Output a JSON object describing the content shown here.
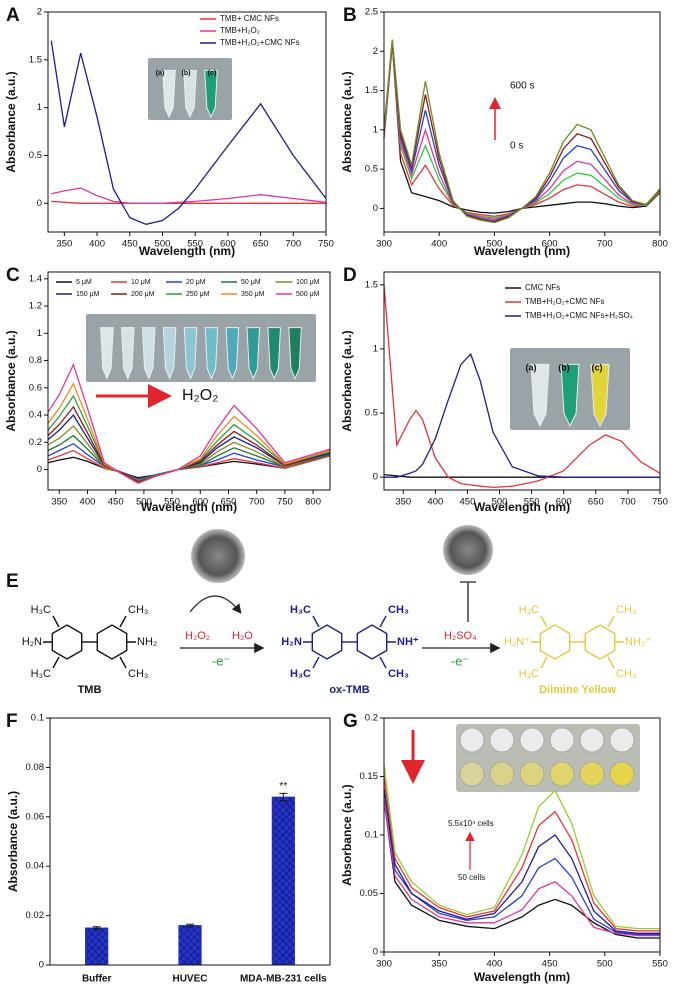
{
  "chart_data": [
    {
      "type": "line",
      "panel_label": "A",
      "x_label": "Wavelength (nm)",
      "y_label": "Absorbance (a.u.)",
      "x": [
        330,
        350,
        375,
        400,
        425,
        450,
        475,
        500,
        525,
        550,
        600,
        650,
        700,
        750
      ],
      "series": [
        {
          "name": "TMB+ CMC NFs",
          "color": "#e8343c",
          "values": [
            0.02,
            0.01,
            0,
            0,
            0,
            0,
            0,
            0,
            0,
            0,
            0,
            0,
            0,
            0
          ]
        },
        {
          "name": "TMB+H₂O₂",
          "color": "#e0379a",
          "values": [
            0.1,
            0.13,
            0.16,
            0.08,
            0.02,
            0,
            0,
            0,
            0.01,
            0.02,
            0.05,
            0.09,
            0.05,
            0.01
          ]
        },
        {
          "name": "TMB+H₂O₂+CMC NFs",
          "color": "#1d1e8c",
          "values": [
            1.7,
            0.8,
            1.57,
            0.9,
            0.15,
            -0.15,
            -0.22,
            -0.18,
            -0.05,
            0.15,
            0.6,
            1.04,
            0.5,
            0.05
          ]
        }
      ],
      "xlim": [
        325,
        750
      ],
      "xticks": [
        350,
        400,
        450,
        500,
        550,
        600,
        650,
        700,
        750
      ],
      "ylim": [
        -0.3,
        2
      ],
      "yticks": [
        0,
        0.5,
        1,
        1.5,
        2
      ],
      "legend": "upper right",
      "inset_labels": [
        "(a)",
        "(b)",
        "(c)"
      ]
    },
    {
      "type": "line",
      "panel_label": "B",
      "x_label": "Wavelength (nm)",
      "y_label": "Absorbance (a.u.)",
      "x": [
        300,
        315,
        330,
        350,
        375,
        400,
        425,
        450,
        475,
        500,
        525,
        550,
        575,
        600,
        625,
        650,
        675,
        700,
        725,
        750,
        775,
        800
      ],
      "series": [
        {
          "color": "#111111",
          "values": [
            0.9,
            2.1,
            0.6,
            0.2,
            0.15,
            0.1,
            0.02,
            -0.02,
            -0.05,
            -0.06,
            -0.04,
            0,
            0.02,
            0.04,
            0.06,
            0.08,
            0.08,
            0.06,
            0.03,
            0.01,
            0.03,
            0.2
          ]
        },
        {
          "color": "#e8343c",
          "values": [
            0.9,
            2.1,
            0.7,
            0.3,
            0.55,
            0.25,
            0.04,
            -0.05,
            -0.08,
            -0.1,
            -0.07,
            0,
            0.05,
            0.13,
            0.24,
            0.3,
            0.28,
            0.18,
            0.08,
            0.03,
            0.04,
            0.21
          ]
        },
        {
          "color": "#2ecc40",
          "values": [
            0.95,
            2.12,
            0.8,
            0.38,
            0.8,
            0.36,
            0.05,
            -0.06,
            -0.1,
            -0.12,
            -0.08,
            0,
            0.07,
            0.19,
            0.36,
            0.45,
            0.42,
            0.28,
            0.13,
            0.05,
            0.04,
            0.22
          ]
        },
        {
          "color": "#e0379a",
          "values": [
            0.95,
            2.12,
            0.85,
            0.43,
            1,
            0.44,
            0.06,
            -0.07,
            -0.11,
            -0.14,
            -0.09,
            0,
            0.09,
            0.25,
            0.48,
            0.6,
            0.56,
            0.37,
            0.17,
            0.06,
            0.05,
            0.23
          ]
        },
        {
          "color": "#2a3fd6",
          "values": [
            0.97,
            2.13,
            0.9,
            0.48,
            1.25,
            0.55,
            0.08,
            -0.08,
            -0.13,
            -0.16,
            -0.1,
            0,
            0.11,
            0.34,
            0.64,
            0.8,
            0.75,
            0.49,
            0.23,
            0.08,
            0.05,
            0.24
          ]
        },
        {
          "color": "#8b1a1a",
          "values": [
            1,
            2.14,
            0.95,
            0.52,
            1.45,
            0.63,
            0.09,
            -0.09,
            -0.14,
            -0.17,
            -0.11,
            0,
            0.13,
            0.4,
            0.76,
            0.95,
            0.89,
            0.58,
            0.27,
            0.09,
            0.05,
            0.24
          ]
        },
        {
          "color": "#6b8e23",
          "values": [
            1,
            2.15,
            1,
            0.55,
            1.62,
            0.7,
            0.1,
            -0.1,
            -0.15,
            -0.18,
            -0.12,
            0,
            0.15,
            0.45,
            0.85,
            1.07,
            1,
            0.65,
            0.3,
            0.1,
            0.05,
            0.25
          ]
        }
      ],
      "xlim": [
        300,
        800
      ],
      "xticks": [
        300,
        400,
        500,
        600,
        700,
        800
      ],
      "ylim": [
        -0.3,
        2.5
      ],
      "yticks": [
        0,
        0.5,
        1,
        1.5,
        2,
        2.5
      ],
      "annotations": [
        "600 s",
        "0 s"
      ]
    },
    {
      "type": "line",
      "panel_label": "C",
      "x_label": "Wavelength (nm)",
      "y_label": "Absorbance (a.u.)",
      "x": [
        330,
        350,
        375,
        400,
        430,
        460,
        490,
        520,
        560,
        600,
        630,
        660,
        700,
        750,
        830
      ],
      "series": [
        {
          "name": "5 μM",
          "color": "#111111",
          "values": [
            0.05,
            0.07,
            0.09,
            0.06,
            0.01,
            -0.02,
            -0.06,
            -0.04,
            0,
            0.02,
            0.04,
            0.06,
            0.04,
            0.01,
            0.1
          ]
        },
        {
          "name": "10 μM",
          "color": "#e8343c",
          "values": [
            0.07,
            0.1,
            0.14,
            0.08,
            0.01,
            -0.02,
            -0.07,
            -0.04,
            0,
            0.02,
            0.05,
            0.08,
            0.05,
            0.01,
            0.1
          ]
        },
        {
          "name": "20 μM",
          "color": "#2a3fd6",
          "values": [
            0.1,
            0.14,
            0.19,
            0.11,
            0.02,
            -0.02,
            -0.07,
            -0.04,
            0,
            0.03,
            0.07,
            0.12,
            0.07,
            0.02,
            0.11
          ]
        },
        {
          "name": "50 μM",
          "color": "#1b7a3a",
          "values": [
            0.14,
            0.18,
            0.25,
            0.15,
            0.02,
            -0.02,
            -0.08,
            -0.04,
            0,
            0.03,
            0.1,
            0.16,
            0.1,
            0.02,
            0.11
          ]
        },
        {
          "name": "100 μM",
          "color": "#8a8a1a",
          "values": [
            0.18,
            0.23,
            0.32,
            0.19,
            0.02,
            -0.02,
            -0.08,
            -0.05,
            0,
            0.04,
            0.13,
            0.2,
            0.13,
            0.02,
            0.12
          ]
        },
        {
          "name": "150 μM",
          "color": "#1d1e8c",
          "values": [
            0.22,
            0.29,
            0.4,
            0.23,
            0.03,
            -0.02,
            -0.09,
            -0.05,
            0,
            0.05,
            0.16,
            0.24,
            0.16,
            0.03,
            0.12
          ]
        },
        {
          "name": "200 μM",
          "color": "#8b1a1a",
          "values": [
            0.25,
            0.33,
            0.46,
            0.27,
            0.03,
            -0.02,
            -0.09,
            -0.05,
            0,
            0.06,
            0.18,
            0.28,
            0.18,
            0.03,
            0.13
          ]
        },
        {
          "name": "250 μM",
          "color": "#2e9e3e",
          "values": [
            0.29,
            0.39,
            0.54,
            0.32,
            0.04,
            -0.03,
            -0.1,
            -0.05,
            0,
            0.07,
            0.21,
            0.33,
            0.21,
            0.04,
            0.13
          ]
        },
        {
          "name": "350 μM",
          "color": "#f08a1c",
          "values": [
            0.34,
            0.45,
            0.63,
            0.37,
            0.04,
            -0.03,
            -0.1,
            -0.05,
            0,
            0.08,
            0.25,
            0.39,
            0.25,
            0.04,
            0.14
          ]
        },
        {
          "name": "500 μM",
          "color": "#e0379a",
          "values": [
            0.42,
            0.55,
            0.77,
            0.45,
            0.05,
            -0.03,
            -0.1,
            -0.05,
            0,
            0.1,
            0.3,
            0.47,
            0.3,
            0.05,
            0.15
          ]
        }
      ],
      "xlim": [
        330,
        830
      ],
      "xticks": [
        350,
        400,
        450,
        500,
        550,
        600,
        650,
        700,
        750,
        800
      ],
      "ylim": [
        -0.15,
        1.45
      ],
      "yticks": [
        0,
        0.2,
        0.4,
        0.6,
        0.8,
        1,
        1.2,
        1.4
      ],
      "legend": "top",
      "annotations": [
        "H₂O₂"
      ]
    },
    {
      "type": "line",
      "panel_label": "D",
      "x_label": "Wavelength (nm)",
      "y_label": "Absorbance (a.u.)",
      "x": [
        320,
        340,
        360,
        370,
        380,
        400,
        420,
        440,
        455,
        470,
        490,
        520,
        560,
        600,
        640,
        665,
        690,
        720,
        750
      ],
      "series": [
        {
          "name": "CMC NFs",
          "color": "#111111",
          "values": [
            0.02,
            0.01,
            0,
            0,
            0,
            0,
            0,
            0,
            0,
            0,
            0,
            0,
            0,
            0,
            0,
            0,
            0,
            0,
            0
          ]
        },
        {
          "name": "TMB+H₂O₂+CMC NFs",
          "color": "#e8343c",
          "values": [
            1.5,
            0.25,
            0.45,
            0.52,
            0.45,
            0.15,
            0,
            -0.05,
            -0.06,
            -0.07,
            -0.08,
            -0.07,
            -0.03,
            0.05,
            0.25,
            0.33,
            0.28,
            0.12,
            0.03
          ]
        },
        {
          "name": "TMB+H₂O₂+CMC NFs+H₂SO₄",
          "color": "#1d1e8c",
          "values": [
            0,
            0,
            0.03,
            0.05,
            0.1,
            0.3,
            0.6,
            0.88,
            0.96,
            0.75,
            0.35,
            0.08,
            0.01,
            0,
            0,
            0,
            0,
            0,
            0
          ]
        }
      ],
      "xlim": [
        320,
        750
      ],
      "xticks": [
        350,
        400,
        450,
        500,
        550,
        600,
        650,
        700,
        750
      ],
      "ylim": [
        -0.1,
        1.6
      ],
      "yticks": [
        0,
        0.5,
        1,
        1.5
      ],
      "legend": "upper right",
      "inset_labels": [
        "(a)",
        "(b)",
        "(c)"
      ]
    },
    {
      "type": "bar",
      "panel_label": "F",
      "y_label": "Absorbance (a.u.)",
      "categories": [
        "Buffer",
        "HUVEC",
        "MDA-MB-231 cells"
      ],
      "values": [
        0.015,
        0.016,
        0.068
      ],
      "errors": [
        0.0005,
        0.0005,
        0.0015
      ],
      "color": "#1f2fb5",
      "ylim": [
        0,
        0.1
      ],
      "yticks": [
        0,
        0.02,
        0.04,
        0.06,
        0.08,
        0.1
      ],
      "annotations": [
        "**"
      ]
    },
    {
      "type": "line",
      "panel_label": "G",
      "x_label": "Wavelength (nm)",
      "y_label": "Absorbance (a.u.)",
      "x": [
        300,
        310,
        325,
        350,
        375,
        400,
        425,
        440,
        455,
        470,
        490,
        510,
        530,
        550
      ],
      "series": [
        {
          "color": "#111111",
          "values": [
            0.13,
            0.06,
            0.04,
            0.027,
            0.022,
            0.02,
            0.03,
            0.04,
            0.045,
            0.04,
            0.025,
            0.015,
            0.012,
            0.012
          ]
        },
        {
          "color": "#e0379a",
          "values": [
            0.13,
            0.065,
            0.045,
            0.03,
            0.025,
            0.025,
            0.036,
            0.054,
            0.06,
            0.048,
            0.021,
            0.016,
            0.014,
            0.014
          ]
        },
        {
          "color": "#2a3fd6",
          "values": [
            0.14,
            0.07,
            0.05,
            0.033,
            0.027,
            0.03,
            0.048,
            0.072,
            0.08,
            0.064,
            0.028,
            0.017,
            0.015,
            0.015
          ]
        },
        {
          "color": "#1d1e8c",
          "values": [
            0.14,
            0.075,
            0.05,
            0.035,
            0.028,
            0.033,
            0.06,
            0.09,
            0.1,
            0.08,
            0.035,
            0.018,
            0.016,
            0.016
          ]
        },
        {
          "color": "#e8343c",
          "values": [
            0.15,
            0.08,
            0.055,
            0.038,
            0.03,
            0.035,
            0.072,
            0.108,
            0.12,
            0.096,
            0.042,
            0.02,
            0.018,
            0.018
          ]
        },
        {
          "color": "#9acd32",
          "values": [
            0.16,
            0.085,
            0.06,
            0.04,
            0.032,
            0.038,
            0.083,
            0.124,
            0.138,
            0.11,
            0.048,
            0.022,
            0.02,
            0.02
          ]
        }
      ],
      "xlim": [
        300,
        550
      ],
      "xticks": [
        300,
        350,
        400,
        450,
        500,
        550
      ],
      "ylim": [
        0,
        0.2
      ],
      "yticks": [
        0,
        0.05,
        0.1,
        0.15,
        0.2
      ],
      "annotations": [
        "5.5x10⁴ cells",
        "50 cells"
      ]
    }
  ],
  "scheme": {
    "panel_label": "E",
    "h2o2": "H₂O₂",
    "h2o": "H₂O",
    "h2so4": "H₂SO₄",
    "electron_1": "-e⁻",
    "electron_2": "-e⁻",
    "molecules": [
      {
        "name": "TMB",
        "atoms": [
          "H₃C",
          "CH₃",
          "H₂N",
          "NH₂",
          "H₃C",
          "CH₃"
        ]
      },
      {
        "name": "ox-TMB",
        "atoms": [
          "H₃C",
          "CH₃",
          "H₂N",
          "NH⁺",
          "H₃C",
          "CH₃"
        ]
      },
      {
        "name": "Diimine Yellow",
        "atoms": [
          "H₃C",
          "CH₃",
          "H₂N⁺",
          "NH₂⁺",
          "H₃C",
          "CH₃"
        ]
      }
    ]
  }
}
